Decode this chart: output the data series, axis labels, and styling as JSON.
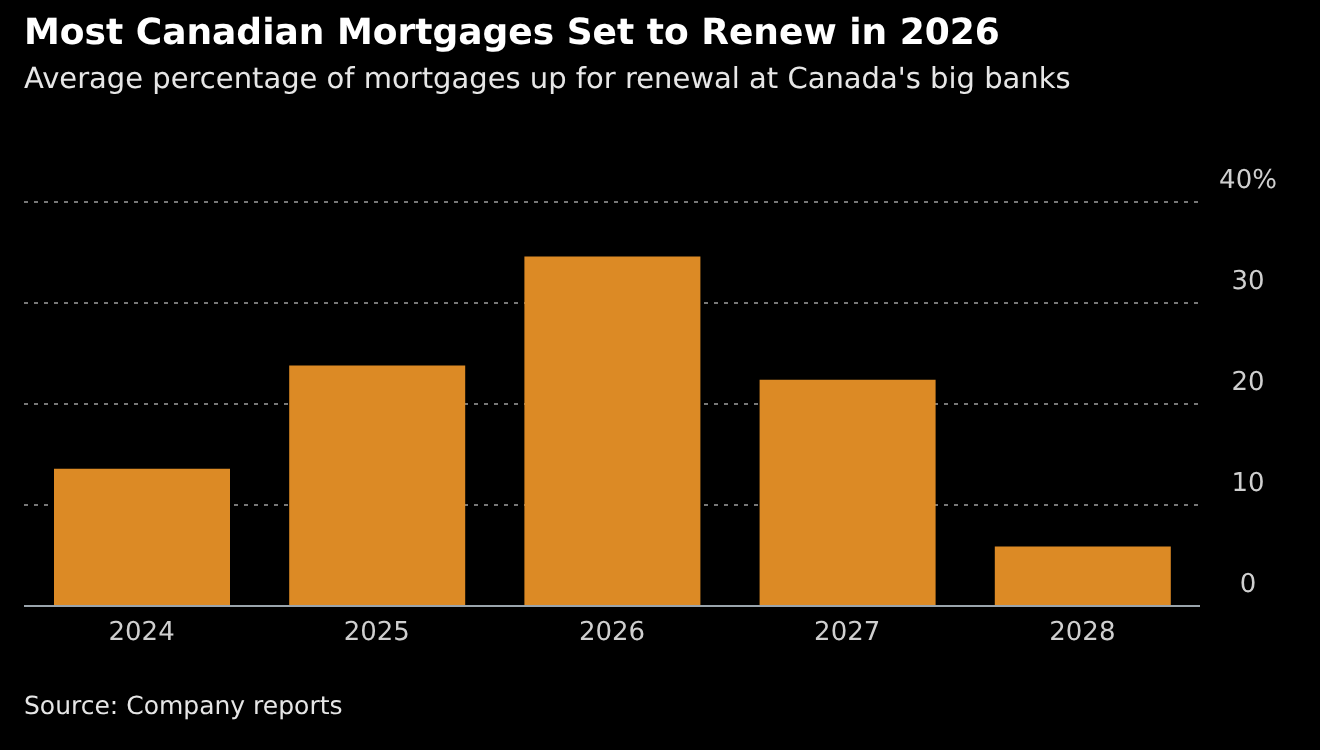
{
  "chart_data": {
    "type": "bar",
    "title": "Most Canadian Mortgages Set to Renew in 2026",
    "subtitle": "Average percentage of mortgages up for renewal at Canada's big banks",
    "categories": [
      "2024",
      "2025",
      "2026",
      "2027",
      "2028"
    ],
    "values": [
      13.6,
      23.8,
      34.6,
      22.4,
      5.9
    ],
    "color": "#dc8a25",
    "ylim": [
      0,
      40
    ],
    "yticks": [
      0,
      10,
      20,
      30,
      {
        "value": 40,
        "label": "40%"
      }
    ],
    "grid": "y",
    "annotations": [
      "Source: Company reports"
    ]
  }
}
